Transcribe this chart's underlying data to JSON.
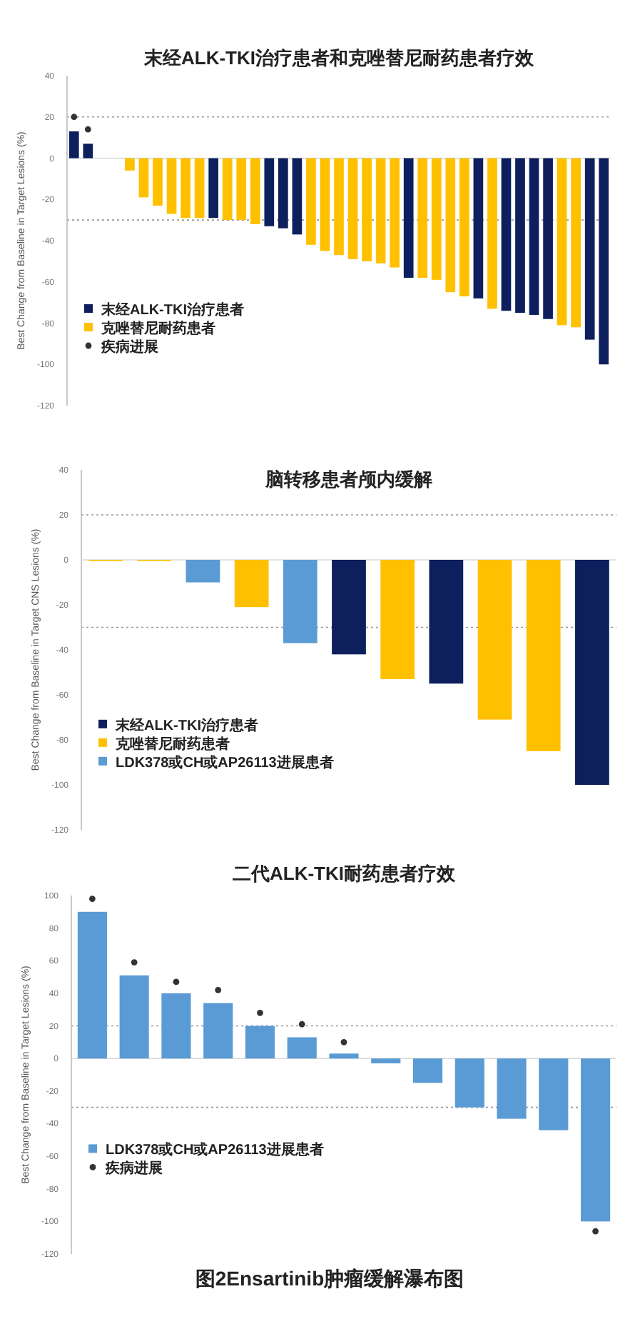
{
  "chart_data": [
    {
      "type": "bar",
      "title": "末经ALK-TKI治疗患者和克唑替尼耐药患者疗效",
      "ylabel": "Best Change from Baseline in Target Lesions (%)",
      "categories": [
        null,
        null,
        null,
        null,
        null,
        null,
        null,
        null,
        null,
        null,
        null,
        null,
        null,
        null,
        null,
        null,
        null,
        null,
        null,
        null,
        null,
        null,
        null,
        null,
        null,
        null,
        null,
        null,
        null,
        null,
        null,
        null,
        null,
        null,
        null,
        null,
        null,
        null,
        null
      ],
      "stacked": true,
      "marker": "circle",
      "legend": "bottom left",
      "ylim": [
        -120,
        40
      ],
      "yticks": [
        -120,
        -100,
        -80,
        -60,
        -40,
        -20,
        0,
        20,
        40
      ],
      "series": [
        {
          "name": "末经ALK-TKI治疗患者",
          "color": "#0d1f5c",
          "values": [
            13,
            7,
            null,
            null,
            null,
            null,
            null,
            null,
            null,
            null,
            -29,
            null,
            null,
            null,
            -33,
            -34,
            -37,
            null,
            null,
            null,
            null,
            null,
            null,
            null,
            -58,
            null,
            null,
            null,
            null,
            -68,
            null,
            -74,
            -75,
            -76,
            -78,
            null,
            null,
            -88,
            -100
          ]
        },
        {
          "name": "克唑替尼耐药患者",
          "color": "#ffc000",
          "values": [
            null,
            null,
            null,
            null,
            -6,
            -19,
            -23,
            -27,
            -29,
            -29,
            null,
            -30,
            -30,
            -32,
            null,
            null,
            null,
            -42,
            -45,
            -47,
            -49,
            -50,
            -51,
            -53,
            null,
            -58,
            -59,
            -65,
            -67,
            null,
            -73,
            null,
            null,
            null,
            null,
            -81,
            -82,
            null,
            null
          ]
        },
        {
          "name": "疾病进展",
          "type": "scatter",
          "color": "#333333",
          "values": [
            20,
            14,
            null,
            null,
            null,
            null,
            null,
            null,
            null,
            null,
            null,
            null,
            null,
            null,
            null,
            null,
            null,
            null,
            null,
            null,
            null,
            null,
            null,
            null,
            null,
            null,
            null,
            null,
            null,
            null,
            null,
            null,
            null,
            null,
            null,
            null,
            null,
            null,
            null
          ]
        }
      ],
      "ref_lines": [
        {
          "axis": "y",
          "value": 20,
          "line_style": "dotted",
          "color": "#999999"
        },
        {
          "axis": "y",
          "value": -30,
          "line_style": "dotted",
          "color": "#999999"
        }
      ]
    },
    {
      "type": "bar",
      "title": "脑转移患者颅内缓解",
      "ylabel": "Best Change from Baseline in Target CNS Lesions (%)",
      "categories": [
        null,
        null,
        null,
        null,
        null,
        null,
        null,
        null,
        null,
        null,
        null
      ],
      "stacked": true,
      "legend": "bottom left",
      "ylim": [
        -120,
        40
      ],
      "yticks": [
        -120,
        -100,
        -80,
        -60,
        -40,
        -20,
        0,
        20,
        40
      ],
      "series": [
        {
          "name": "末经ALK-TKI治疗患者",
          "color": "#0d1f5c",
          "values": [
            null,
            null,
            null,
            null,
            null,
            -42,
            null,
            -55,
            null,
            null,
            -100
          ]
        },
        {
          "name": "克唑替尼耐药患者",
          "color": "#ffc000",
          "values": [
            -0.5,
            -0.5,
            null,
            -21,
            null,
            null,
            -53,
            null,
            -71,
            -85,
            null
          ]
        },
        {
          "name": "LDK378或CH或AP26113进展患者",
          "color": "#5b9bd5",
          "values": [
            null,
            null,
            -10,
            null,
            -37,
            null,
            null,
            null,
            null,
            null,
            null
          ]
        }
      ],
      "ref_lines": [
        {
          "axis": "y",
          "value": 20,
          "line_style": "dotted",
          "color": "#999999"
        },
        {
          "axis": "y",
          "value": -30,
          "line_style": "dotted",
          "color": "#999999"
        }
      ]
    },
    {
      "type": "bar",
      "title": "二代ALK-TKI耐药患者疗效",
      "ylabel": "Best Change from Baseline in Target Lesions (%)",
      "categories": [
        null,
        null,
        null,
        null,
        null,
        null,
        null,
        null,
        null,
        null,
        null,
        null,
        null
      ],
      "marker": "circle",
      "legend": "bottom left",
      "ylim": [
        -120,
        100
      ],
      "yticks": [
        -120,
        -100,
        -80,
        -60,
        -40,
        -20,
        0,
        20,
        40,
        60,
        80,
        100
      ],
      "series": [
        {
          "name": "LDK378或CH或AP26113进展患者",
          "color": "#5b9bd5",
          "values": [
            90,
            51,
            40,
            34,
            20,
            13,
            3,
            -3,
            -15,
            -30,
            -37,
            -44,
            -100
          ]
        },
        {
          "name": "疾病进展",
          "type": "scatter",
          "color": "#333333",
          "values": [
            98,
            59,
            47,
            42,
            28,
            21,
            10,
            null,
            null,
            null,
            null,
            null,
            -106
          ]
        }
      ],
      "ref_lines": [
        {
          "axis": "y",
          "value": 20,
          "line_style": "dotted",
          "color": "#999999"
        },
        {
          "axis": "y",
          "value": -30,
          "line_style": "dotted",
          "color": "#999999"
        }
      ],
      "annotations": [
        "图2Ensartinib肿瘤缓解瀑布图"
      ]
    }
  ]
}
